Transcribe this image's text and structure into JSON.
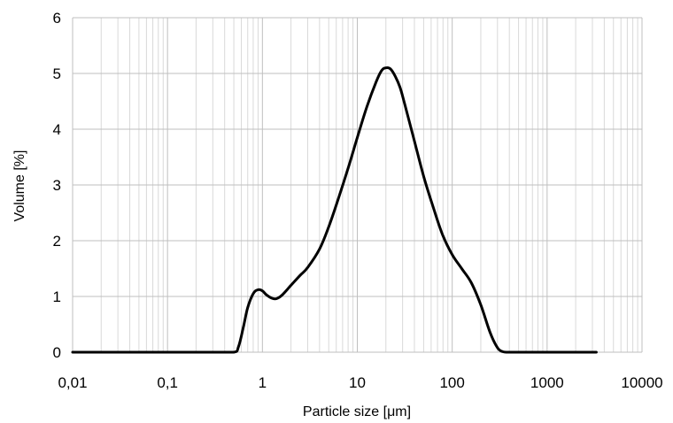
{
  "chart_data": {
    "type": "line",
    "title": "",
    "xlabel": "Particle size [μm]",
    "ylabel": "Volume [%]",
    "xscale": "log",
    "xlim": [
      0.01,
      10000
    ],
    "ylim": [
      0,
      6
    ],
    "x_tick_labels": [
      "0,01",
      "0,1",
      "1",
      "10",
      "100",
      "1000",
      "10000"
    ],
    "y_tick_labels": [
      "0",
      "1",
      "2",
      "3",
      "4",
      "5",
      "6"
    ],
    "grid": true,
    "legend": "none",
    "colors": {
      "line": "#000000",
      "major_grid": "#bfbfbf",
      "minor_grid": "#d9d9d9"
    },
    "series": [
      {
        "x": [
          0.01,
          0.1,
          0.3,
          0.5,
          0.56,
          0.63,
          0.7,
          0.8,
          0.9,
          1.0,
          1.1,
          1.25,
          1.4,
          1.6,
          2.0,
          2.5,
          3.0,
          4.0,
          5.0,
          6.3,
          8.0,
          10.0,
          12.6,
          15.8,
          18.0,
          20.0,
          22.4,
          25.1,
          28.2,
          31.6,
          39.8,
          50.1,
          63.1,
          79.4,
          100.0,
          125.9,
          158.5,
          200.0,
          251.2,
          300.0,
          340.0,
          380.0,
          500.0,
          1000.0,
          3300.0
        ],
        "y": [
          0.0,
          0.0,
          0.0,
          0.0,
          0.1,
          0.45,
          0.8,
          1.05,
          1.12,
          1.1,
          1.03,
          0.97,
          0.96,
          1.02,
          1.2,
          1.38,
          1.52,
          1.85,
          2.25,
          2.75,
          3.3,
          3.85,
          4.4,
          4.85,
          5.05,
          5.1,
          5.08,
          4.95,
          4.75,
          4.45,
          3.8,
          3.15,
          2.6,
          2.1,
          1.75,
          1.5,
          1.25,
          0.85,
          0.35,
          0.08,
          0.01,
          0.0,
          0.0,
          0.0,
          0.0
        ]
      }
    ]
  }
}
